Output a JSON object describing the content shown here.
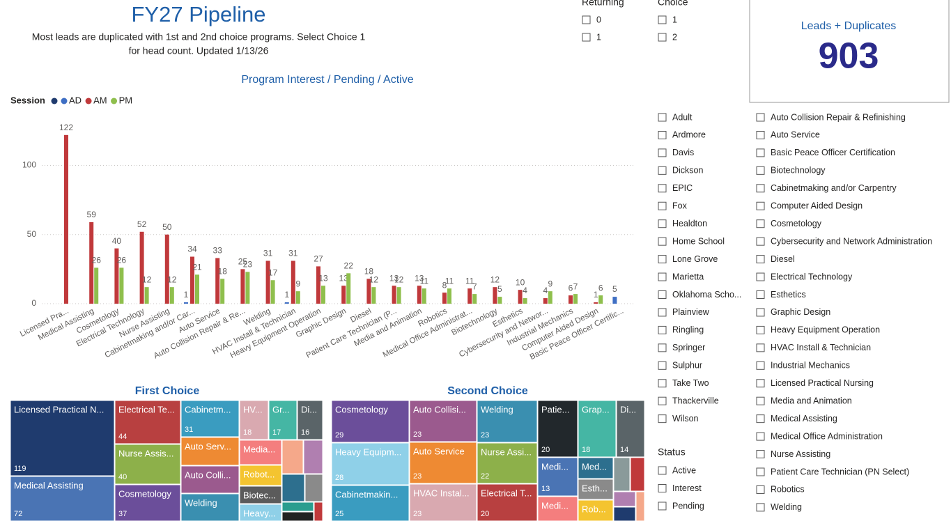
{
  "header": {
    "title": "FY27 Pipeline",
    "subtitle_lines": [
      "Most leads are duplicated with 1st and 2nd choice programs. Select Choice 1",
      "for head count. Updated 1/13/26"
    ]
  },
  "returning_slicer": {
    "title": "Returning",
    "options": [
      "0",
      "1"
    ]
  },
  "choice_slicer": {
    "title": "Choice",
    "options": [
      "1",
      "2"
    ]
  },
  "card": {
    "label": "Leads + Duplicates",
    "value": 903
  },
  "location_slicer": {
    "options": [
      "Adult",
      "Ardmore",
      "Davis",
      "Dickson",
      "EPIC",
      "Fox",
      "Healdton",
      "Home School",
      "Lone Grove",
      "Marietta",
      "Oklahoma Scho...",
      "Plainview",
      "Ringling",
      "Springer",
      "Sulphur",
      "Take Two",
      "Thackerville",
      "Wilson"
    ]
  },
  "status_slicer": {
    "title": "Status",
    "options": [
      "Active",
      "Interest",
      "Pending"
    ]
  },
  "program_slicer": {
    "options": [
      "Auto Collision Repair & Refinishing",
      "Auto Service",
      "Basic Peace Officer Certification",
      "Biotechnology",
      "Cabinetmaking and/or Carpentry",
      "Computer Aided Design",
      "Cosmetology",
      "Cybersecurity and Network Administration",
      "Diesel",
      "Electrical Technology",
      "Esthetics",
      "Graphic Design",
      "Heavy Equipment Operation",
      "HVAC Install & Technician",
      "Industrial Mechanics",
      "Licensed Practical Nursing",
      "Media and Animation",
      "Medical Assisting",
      "Medical Office Administration",
      "Nurse Assisting",
      "Patient Care Technician (PN Select)",
      "Robotics",
      "Welding"
    ]
  },
  "chart_data": [
    {
      "type": "bar",
      "title": "Program Interest / Pending / Active",
      "legend_title": "Session",
      "categories": [
        "Licensed Pra...",
        "Medical Assisting",
        "Cosmetology",
        "Electrical Technology",
        "Nurse Assisting",
        "Cabinetmaking and/or Car...",
        "Auto Service",
        "Auto Collision Repair & Re...",
        "Welding",
        "HVAC Install & Technician",
        "Heavy Equipment Operation",
        "Graphic Design",
        "Diesel",
        "Patient Care Technician (P...",
        "Media and Animation",
        "Robotics",
        "Medical Office Administrat...",
        "Biotechnology",
        "Esthetics",
        "Cybersecurity and Networ...",
        "Industrial Mechanics",
        "Computer Aided Design",
        "Basic Peace Officer Certific..."
      ],
      "series": [
        {
          "name": "AD",
          "color": "#3f6fc4",
          "values": [
            null,
            null,
            null,
            null,
            null,
            1,
            null,
            null,
            null,
            1,
            null,
            null,
            null,
            null,
            null,
            null,
            null,
            null,
            null,
            null,
            null,
            null,
            5
          ]
        },
        {
          "name": "AM",
          "color": "#c0393b",
          "values": [
            122,
            59,
            40,
            52,
            50,
            34,
            33,
            25,
            31,
            31,
            27,
            13,
            18,
            13,
            13,
            8,
            11,
            12,
            10,
            4,
            6,
            1,
            null
          ]
        },
        {
          "name": "PM",
          "color": "#8fbf4d",
          "values": [
            null,
            26,
            26,
            12,
            12,
            21,
            18,
            23,
            17,
            9,
            13,
            22,
            12,
            12,
            11,
            11,
            7,
            5,
            4,
            9,
            7,
            6,
            null
          ]
        }
      ],
      "ylim": [
        0,
        134
      ],
      "yticks": [
        0,
        50,
        100
      ],
      "grid": true
    },
    {
      "type": "treemap",
      "title": "First Choice",
      "items": [
        {
          "label": "Licensed Practical N...",
          "value": 119,
          "color": "#1f3b6e"
        },
        {
          "label": "Medical Assisting",
          "value": 72,
          "color": "#4a74b4"
        },
        {
          "label": "Electrical Te...",
          "value": 44,
          "color": "#b84040"
        },
        {
          "label": "Nurse Assis...",
          "value": 40,
          "color": "#8db04a"
        },
        {
          "label": "Cosmetology",
          "value": 37,
          "color": "#6b4e9a"
        },
        {
          "label": "Cabinetm...",
          "value": 31,
          "color": "#3a9cc0"
        },
        {
          "label": "Auto Serv...",
          "color": "#ee8a33"
        },
        {
          "label": "Auto Colli...",
          "color": "#9b5a8e"
        },
        {
          "label": "Welding",
          "color": "#3a8fb0"
        },
        {
          "label": "HV...",
          "value": 18,
          "color": "#d9a9b0"
        },
        {
          "label": "Gr...",
          "value": 17,
          "color": "#45b6a4"
        },
        {
          "label": "Di...",
          "value": 16,
          "color": "#5a6468"
        },
        {
          "label": "Media...",
          "color": "#f47e7e"
        },
        {
          "label": "Robot...",
          "color": "#f4c430"
        },
        {
          "label": "Biotec...",
          "color": "#5b5b5b"
        },
        {
          "label": "Heavy...",
          "color": "#8fd0e8"
        }
      ]
    },
    {
      "type": "treemap",
      "title": "Second Choice",
      "items": [
        {
          "label": "Cosmetology",
          "value": 29,
          "color": "#6b4e9a"
        },
        {
          "label": "Heavy Equipm...",
          "value": 28,
          "color": "#8fd0e8"
        },
        {
          "label": "Cabinetmakin...",
          "value": 25,
          "color": "#3a9cc0"
        },
        {
          "label": "Auto Collisi...",
          "value": 23,
          "color": "#9b5a8e"
        },
        {
          "label": "Auto Service",
          "value": 23,
          "color": "#ee8a33"
        },
        {
          "label": "HVAC Instal...",
          "value": 23,
          "color": "#d9a9b0"
        },
        {
          "label": "Welding",
          "value": 23,
          "color": "#3a8fb0"
        },
        {
          "label": "Nurse Assi...",
          "value": 22,
          "color": "#8db04a"
        },
        {
          "label": "Electrical T...",
          "value": 20,
          "color": "#b84040"
        },
        {
          "label": "Patie...",
          "value": 20,
          "color": "#22282c"
        },
        {
          "label": "Grap...",
          "value": 18,
          "color": "#45b6a4"
        },
        {
          "label": "Di...",
          "value": 14,
          "color": "#5a6468"
        },
        {
          "label": "Medi...",
          "value": 13,
          "color": "#4a74b4"
        },
        {
          "label": "Medi...",
          "color": "#f47e7e"
        },
        {
          "label": "Med...",
          "color": "#2d6f8e"
        },
        {
          "label": "Esth...",
          "color": "#8a8a8a"
        },
        {
          "label": "Rob...",
          "color": "#f4c430"
        }
      ]
    }
  ]
}
